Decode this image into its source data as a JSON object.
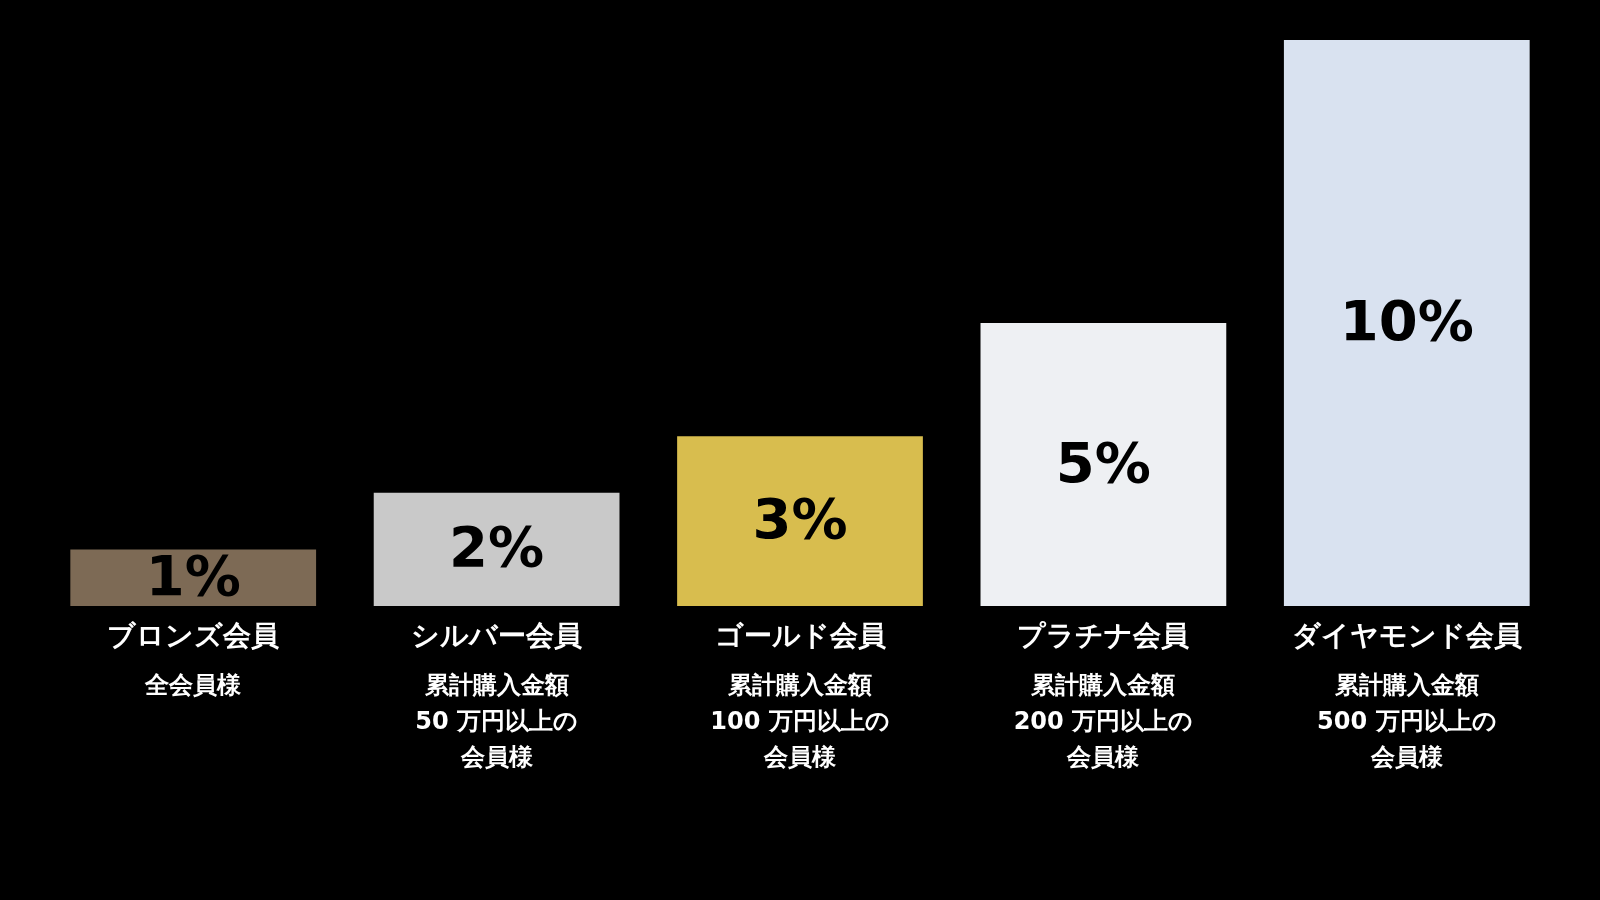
{
  "chart_data": {
    "type": "bar",
    "categories": [
      "ブロンズ会員",
      "シルバー会員",
      "ゴールド会員",
      "プラチナ会員",
      "ダイヤモンド会員"
    ],
    "values": [
      1,
      2,
      3,
      5,
      10
    ],
    "value_labels": [
      "1%",
      "2%",
      "3%",
      "5%",
      "10%"
    ],
    "colors": [
      "#7d6a55",
      "#c9c9c9",
      "#d8bd4e",
      "#eef0f3",
      "#d9e2f0"
    ],
    "annotations": [
      "全会員様",
      "累計購入金額",
      "50 万円以上の",
      "会員様",
      "累計購入金額",
      "100 万円以上の",
      "会員様",
      "累計購入金額",
      "200 万円以上の",
      "会員様",
      "累計購入金額",
      "500 万円以上の",
      "会員様"
    ],
    "tick_labels": "x"
  }
}
